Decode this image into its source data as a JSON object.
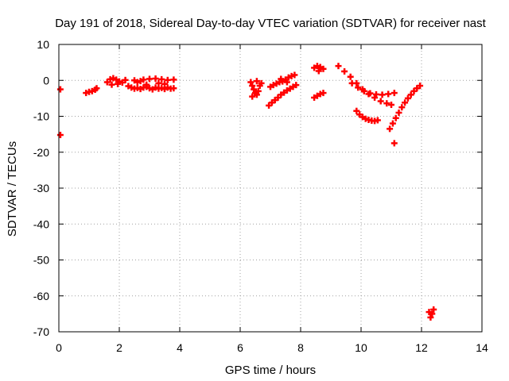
{
  "chart_data": {
    "type": "scatter",
    "title": "Day 191 of 2018, Sidereal Day-to-day VTEC variation (SDTVAR) for receiver nast",
    "xlabel": "GPS time / hours",
    "ylabel": "SDTVAR / TECUs",
    "xlim": [
      0,
      14
    ],
    "ylim": [
      -70,
      10
    ],
    "xticks": [
      0,
      2,
      4,
      6,
      8,
      10,
      12,
      14
    ],
    "yticks": [
      10,
      0,
      -10,
      -20,
      -30,
      -40,
      -50,
      -60,
      -70
    ],
    "grid": true,
    "marker": "+",
    "series_color": "#ff0000",
    "series": [
      {
        "name": "SDTVAR",
        "points": [
          [
            0.05,
            -2.5
          ],
          [
            0.05,
            -15.2
          ],
          [
            0.9,
            -3.5
          ],
          [
            1.0,
            -3.2
          ],
          [
            1.1,
            -3.0
          ],
          [
            1.2,
            -2.6
          ],
          [
            1.25,
            -2.2
          ],
          [
            1.6,
            -0.5
          ],
          [
            1.7,
            0.3
          ],
          [
            1.8,
            0.6
          ],
          [
            1.9,
            0.2
          ],
          [
            2.0,
            -0.3
          ],
          [
            2.1,
            -0.6
          ],
          [
            2.2,
            0.1
          ],
          [
            1.75,
            -1.2
          ],
          [
            1.95,
            -1.0
          ],
          [
            2.3,
            -1.6
          ],
          [
            2.4,
            -2.0
          ],
          [
            2.5,
            -2.3
          ],
          [
            2.6,
            -2.1
          ],
          [
            2.7,
            -2.4
          ],
          [
            2.8,
            -2.0
          ],
          [
            2.9,
            -1.8
          ],
          [
            3.0,
            -2.2
          ],
          [
            3.1,
            -2.5
          ],
          [
            3.2,
            -2.0
          ],
          [
            3.3,
            -2.3
          ],
          [
            3.4,
            -2.1
          ],
          [
            3.5,
            -2.4
          ],
          [
            3.6,
            -2.0
          ],
          [
            3.7,
            -2.3
          ],
          [
            3.8,
            -2.2
          ],
          [
            2.5,
            0.0
          ],
          [
            2.6,
            -0.5
          ],
          [
            2.7,
            -0.2
          ],
          [
            2.8,
            0.2
          ],
          [
            3.0,
            0.4
          ],
          [
            3.2,
            0.5
          ],
          [
            3.4,
            0.3
          ],
          [
            3.6,
            0.1
          ],
          [
            3.8,
            0.2
          ],
          [
            3.3,
            -0.8
          ],
          [
            3.5,
            -1.0
          ],
          [
            2.9,
            -1.2
          ],
          [
            6.35,
            -0.5
          ],
          [
            6.4,
            -1.5
          ],
          [
            6.45,
            -2.5
          ],
          [
            6.5,
            -3.5
          ],
          [
            6.55,
            -4.0
          ],
          [
            6.6,
            -3.0
          ],
          [
            6.65,
            -1.5
          ],
          [
            6.7,
            -0.8
          ],
          [
            6.4,
            -4.5
          ],
          [
            6.55,
            -0.2
          ],
          [
            6.95,
            -7.0
          ],
          [
            7.05,
            -6.2
          ],
          [
            7.15,
            -5.5
          ],
          [
            7.25,
            -4.8
          ],
          [
            7.35,
            -4.0
          ],
          [
            7.45,
            -3.4
          ],
          [
            7.55,
            -2.8
          ],
          [
            7.65,
            -2.3
          ],
          [
            7.75,
            -1.8
          ],
          [
            7.85,
            -1.3
          ],
          [
            7.0,
            -1.8
          ],
          [
            7.1,
            -1.3
          ],
          [
            7.2,
            -0.9
          ],
          [
            7.3,
            -0.5
          ],
          [
            7.4,
            -0.3
          ],
          [
            7.5,
            0.2
          ],
          [
            7.6,
            0.8
          ],
          [
            7.7,
            1.2
          ],
          [
            7.8,
            1.5
          ],
          [
            7.35,
            0.4
          ],
          [
            7.55,
            -0.5
          ],
          [
            8.45,
            3.5
          ],
          [
            8.55,
            4.0
          ],
          [
            8.65,
            3.7
          ],
          [
            8.75,
            3.2
          ],
          [
            8.6,
            2.6
          ],
          [
            8.45,
            -4.8
          ],
          [
            8.55,
            -4.3
          ],
          [
            8.65,
            -3.8
          ],
          [
            8.75,
            -3.5
          ],
          [
            9.25,
            4.0
          ],
          [
            9.45,
            2.5
          ],
          [
            9.65,
            1.0
          ],
          [
            9.85,
            -0.8
          ],
          [
            10.05,
            -2.5
          ],
          [
            10.25,
            -3.8
          ],
          [
            10.45,
            -4.8
          ],
          [
            10.65,
            -5.8
          ],
          [
            10.85,
            -6.4
          ],
          [
            11.0,
            -6.8
          ],
          [
            9.7,
            -0.8
          ],
          [
            9.9,
            -2.0
          ],
          [
            10.1,
            -3.0
          ],
          [
            10.3,
            -3.6
          ],
          [
            10.5,
            -3.9
          ],
          [
            10.7,
            -4.0
          ],
          [
            10.9,
            -3.8
          ],
          [
            11.1,
            -3.5
          ],
          [
            9.85,
            -8.5
          ],
          [
            9.95,
            -9.5
          ],
          [
            10.05,
            -10.2
          ],
          [
            10.15,
            -10.7
          ],
          [
            10.25,
            -11.0
          ],
          [
            10.35,
            -11.2
          ],
          [
            10.45,
            -11.3
          ],
          [
            10.55,
            -11.1
          ],
          [
            10.95,
            -13.5
          ],
          [
            11.05,
            -12.0
          ],
          [
            11.15,
            -10.5
          ],
          [
            11.25,
            -9.0
          ],
          [
            11.35,
            -7.5
          ],
          [
            11.45,
            -6.2
          ],
          [
            11.55,
            -5.0
          ],
          [
            11.65,
            -4.0
          ],
          [
            11.75,
            -3.0
          ],
          [
            11.85,
            -2.2
          ],
          [
            11.95,
            -1.5
          ],
          [
            11.1,
            -17.5
          ],
          [
            12.25,
            -64.5
          ],
          [
            12.3,
            -66.0
          ],
          [
            12.35,
            -65.0
          ],
          [
            12.4,
            -63.8
          ]
        ]
      }
    ]
  }
}
